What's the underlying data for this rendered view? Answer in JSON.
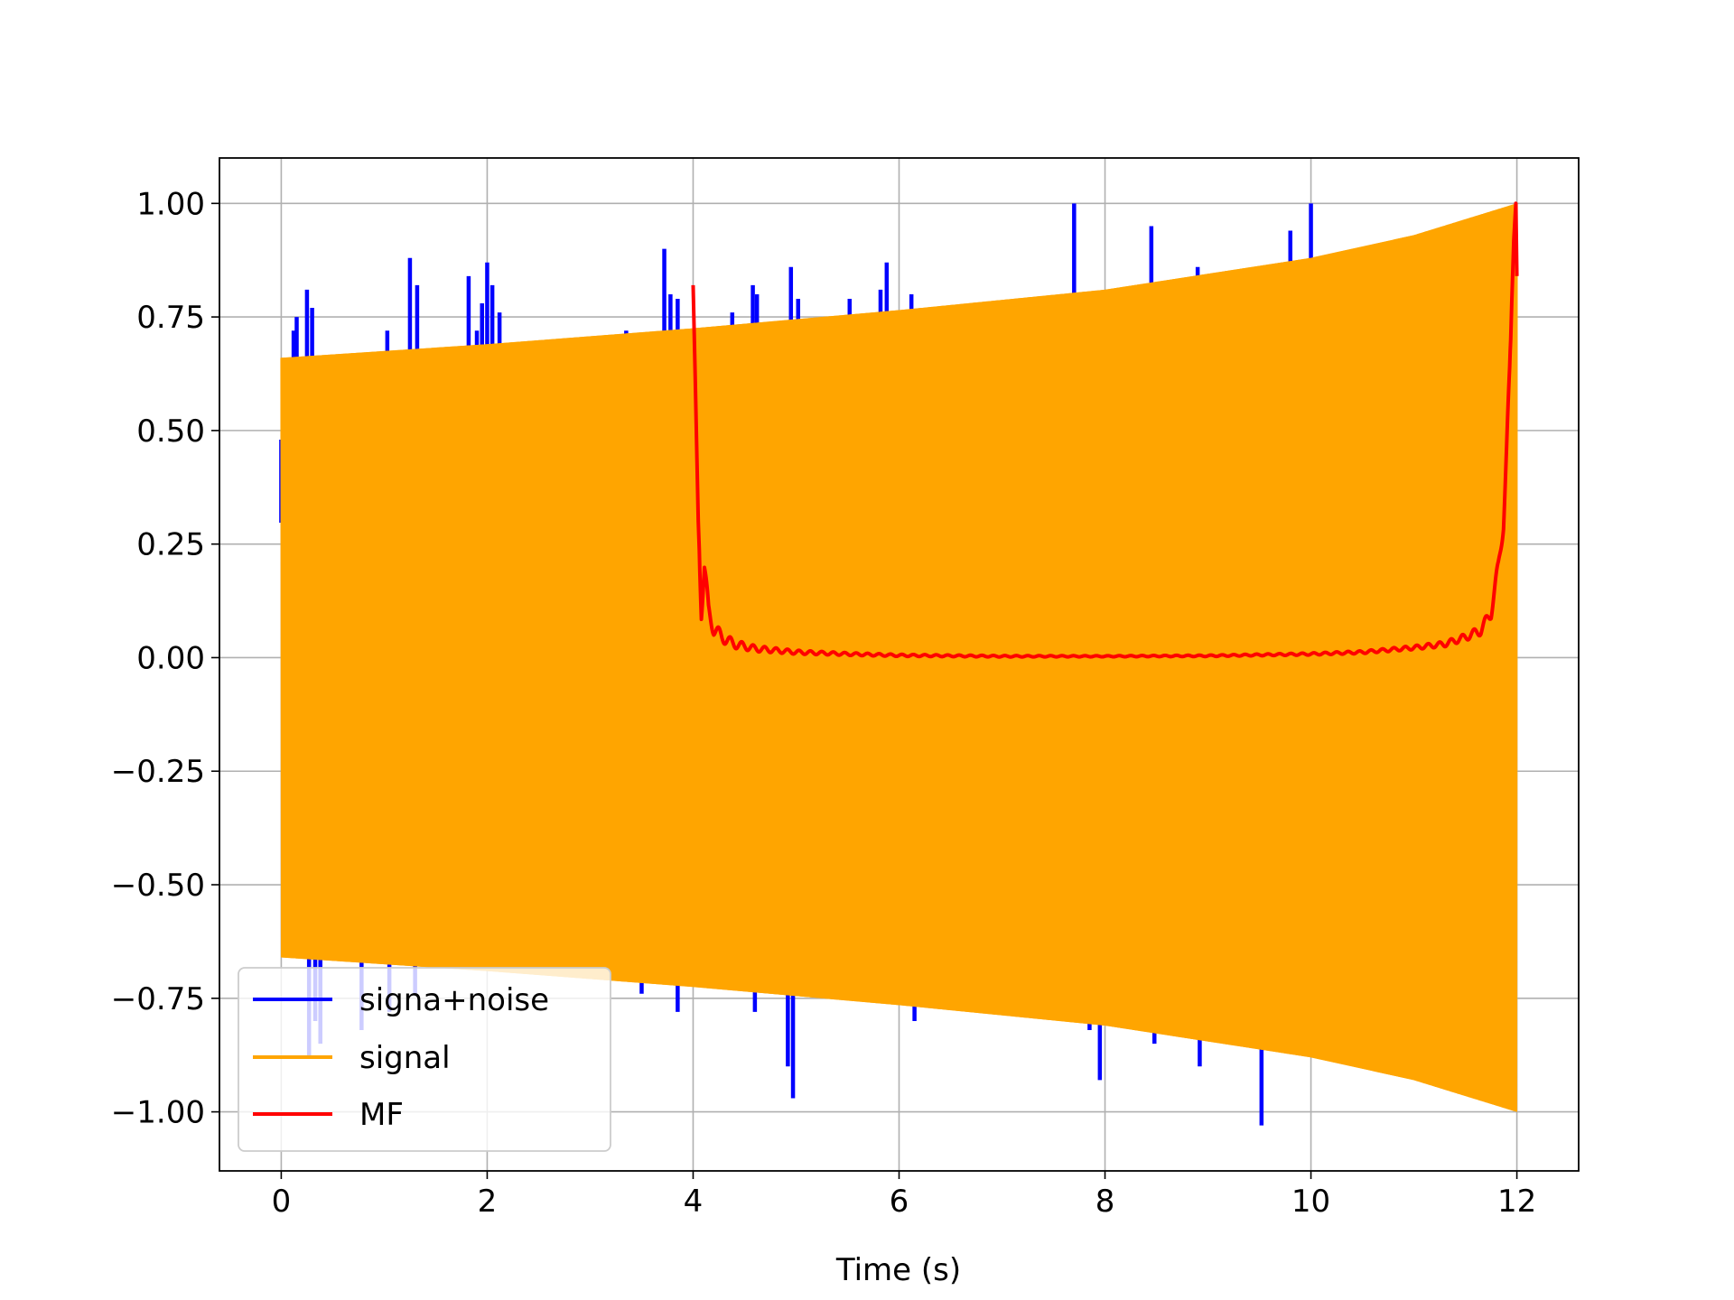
{
  "chart_data": {
    "type": "line",
    "title": "",
    "xlabel": "Time (s)",
    "ylabel": "",
    "xlim": [
      -0.6,
      12.6
    ],
    "ylim": [
      -1.13,
      1.1
    ],
    "x_ticks": [
      0,
      2,
      4,
      6,
      8,
      10,
      12
    ],
    "x_tick_labels": [
      "0",
      "2",
      "4",
      "6",
      "8",
      "10",
      "12"
    ],
    "y_ticks": [
      1.0,
      0.75,
      0.5,
      0.25,
      0.0,
      -0.25,
      -0.5,
      -0.75,
      -1.0
    ],
    "y_tick_labels": [
      "1.00",
      "0.75",
      "0.50",
      "0.25",
      "0.00",
      "−0.25",
      "−0.50",
      "−0.75",
      "−1.00"
    ],
    "grid": true,
    "legend_position": "lower-left",
    "series": [
      {
        "name": "signa+noise",
        "color": "#0000ff",
        "style": "noise spikes beyond the signal envelope",
        "spikes": [
          [
            0.0,
            0.48
          ],
          [
            0.03,
            -0.3
          ],
          [
            0.12,
            0.72
          ],
          [
            0.15,
            0.75
          ],
          [
            0.22,
            0.66
          ],
          [
            0.25,
            0.81
          ],
          [
            0.3,
            0.77
          ],
          [
            0.27,
            -0.88
          ],
          [
            0.33,
            -0.8
          ],
          [
            0.38,
            -0.85
          ],
          [
            0.78,
            -0.82
          ],
          [
            1.03,
            0.72
          ],
          [
            1.05,
            -0.78
          ],
          [
            1.25,
            0.88
          ],
          [
            1.32,
            0.82
          ],
          [
            1.3,
            -0.74
          ],
          [
            1.82,
            0.84
          ],
          [
            1.9,
            0.72
          ],
          [
            1.95,
            0.78
          ],
          [
            2.0,
            0.87
          ],
          [
            2.05,
            0.82
          ],
          [
            2.12,
            0.76
          ],
          [
            3.35,
            0.72
          ],
          [
            3.5,
            -0.74
          ],
          [
            3.72,
            0.9
          ],
          [
            3.78,
            0.8
          ],
          [
            3.85,
            0.79
          ],
          [
            3.85,
            -0.78
          ],
          [
            4.1,
            0.7
          ],
          [
            4.38,
            0.76
          ],
          [
            4.58,
            0.82
          ],
          [
            4.62,
            0.8
          ],
          [
            4.6,
            -0.78
          ],
          [
            4.92,
            -0.9
          ],
          [
            4.95,
            0.86
          ],
          [
            4.97,
            -0.97
          ],
          [
            5.02,
            0.79
          ],
          [
            5.17,
            -0.74
          ],
          [
            5.52,
            0.79
          ],
          [
            5.82,
            0.81
          ],
          [
            5.88,
            0.87
          ],
          [
            6.12,
            0.8
          ],
          [
            6.15,
            -0.8
          ],
          [
            6.72,
            -0.77
          ],
          [
            7.7,
            1.0
          ],
          [
            7.85,
            -0.82
          ],
          [
            7.95,
            -0.93
          ],
          [
            8.45,
            0.95
          ],
          [
            8.48,
            -0.85
          ],
          [
            8.9,
            0.86
          ],
          [
            8.92,
            -0.9
          ],
          [
            9.45,
            0.85
          ],
          [
            9.52,
            -1.03
          ],
          [
            9.8,
            0.94
          ],
          [
            9.82,
            -0.85
          ],
          [
            10.0,
            1.0
          ]
        ]
      },
      {
        "name": "signal",
        "color": "#ffa500",
        "style": "dense oscillation filling a growing amplitude envelope",
        "x_start": 0,
        "x_end": 12,
        "envelope_points": [
          [
            0,
            0.66
          ],
          [
            2,
            0.69
          ],
          [
            4,
            0.725
          ],
          [
            6,
            0.765
          ],
          [
            8,
            0.81
          ],
          [
            10,
            0.88
          ],
          [
            11,
            0.93
          ],
          [
            12,
            1.0
          ]
        ]
      },
      {
        "name": "MF",
        "color": "#ff0000",
        "style": "matched filter output with peaks at 4 s and 12 s",
        "x": [
          4.0,
          4.02,
          4.05,
          4.08,
          4.11,
          4.15,
          4.2,
          4.28,
          4.4,
          4.6,
          5.0,
          5.5,
          6.0,
          7.0,
          8.0,
          9.0,
          10.0,
          10.5,
          11.0,
          11.3,
          11.5,
          11.65,
          11.75,
          11.82,
          11.87,
          11.9,
          11.93,
          11.95,
          11.97,
          11.99,
          12.0
        ],
        "y": [
          0.82,
          0.62,
          0.3,
          0.11,
          0.2,
          0.1,
          0.065,
          0.045,
          0.03,
          0.02,
          0.012,
          0.008,
          0.005,
          0.003,
          0.003,
          0.004,
          0.008,
          0.012,
          0.022,
          0.03,
          0.045,
          0.06,
          0.1,
          0.2,
          0.3,
          0.45,
          0.62,
          0.78,
          0.92,
          1.0,
          0.84
        ]
      }
    ]
  }
}
